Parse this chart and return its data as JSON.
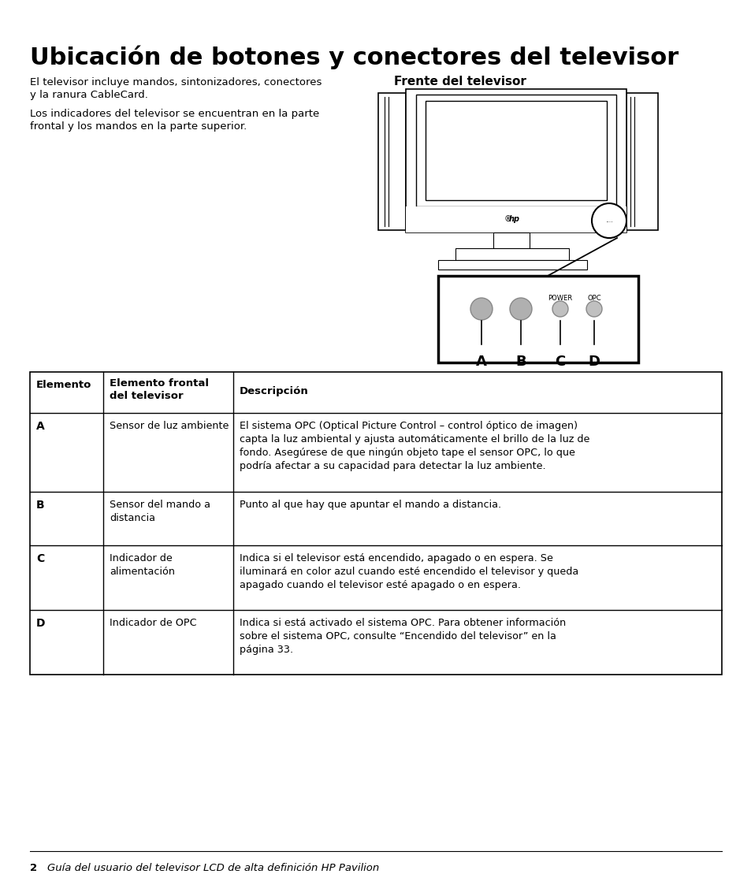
{
  "title": "Ubicación de botones y conectores del televisor",
  "subtitle_left1": "El televisor incluye mandos, sintonizadores, conectores",
  "subtitle_left2": "y la ranura CableCard.",
  "subtitle_left3": "Los indicadores del televisor se encuentran en la parte",
  "subtitle_left4": "frontal y los mandos en la parte superior.",
  "image_title": "Frente del televisor",
  "table_rows": [
    [
      "A",
      "Sensor de luz ambiente",
      "El sistema OPC (Optical Picture Control – control óptico de imagen)\ncapta la luz ambiental y ajusta automáticamente el brillo de la luz de\nfondo. Asegúrese de que ningún objeto tape el sensor OPC, lo que\npodría afectar a su capacidad para detectar la luz ambiente."
    ],
    [
      "B",
      "Sensor del mando a\ndistancia",
      "Punto al que hay que apuntar el mando a distancia."
    ],
    [
      "C",
      "Indicador de\nalimentación",
      "Indica si el televisor está encendido, apagado o en espera. Se\niluminará en color azul cuando esté encendido el televisor y queda\napagado cuando el televisor esté apagado o en espera."
    ],
    [
      "D",
      "Indicador de OPC",
      "Indica si está activado el sistema OPC. Para obtener información\nsobre el sistema OPC, consulte “Encendido del televisor” en la\npágina 33."
    ]
  ],
  "bg_color": "#ffffff",
  "text_color": "#000000"
}
